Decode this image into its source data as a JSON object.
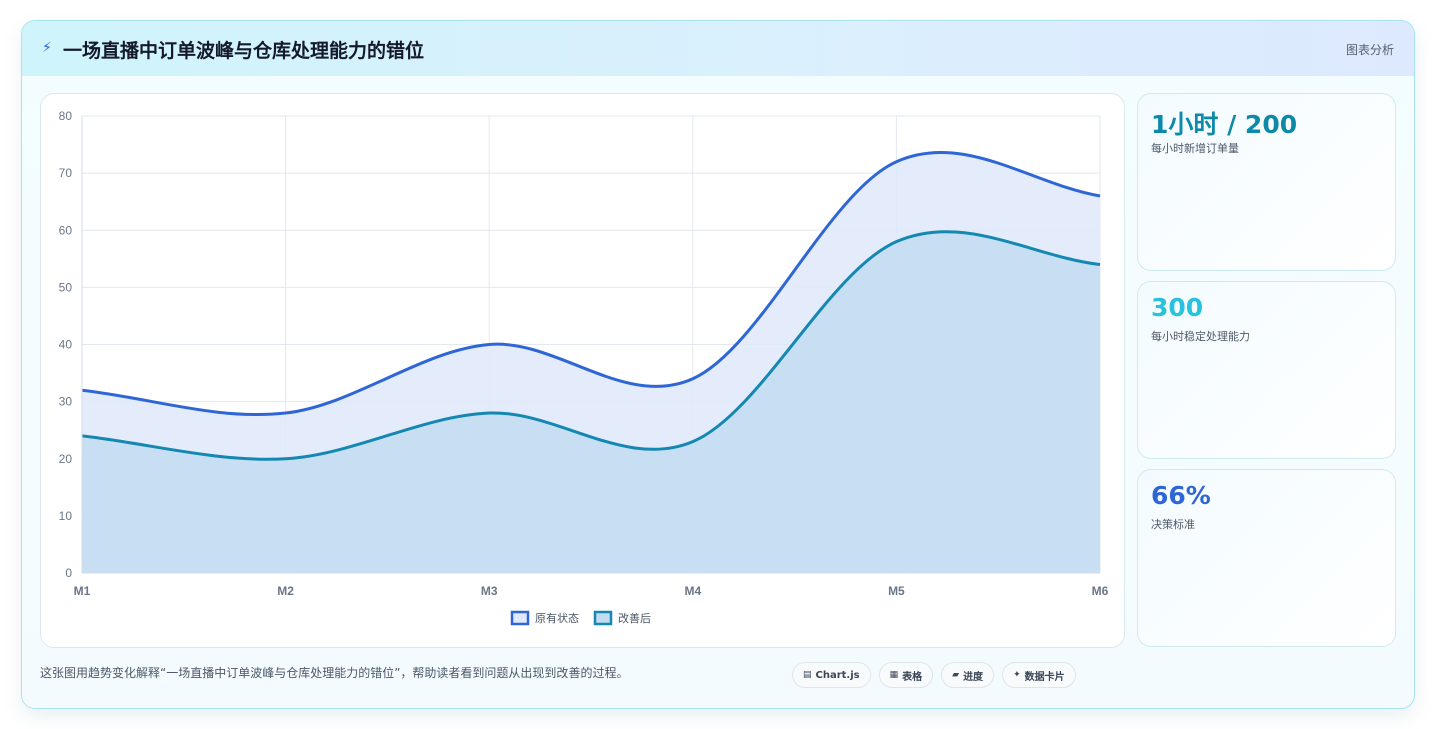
{
  "header": {
    "title": "一场直播中订单波峰与仓库处理能力的错位",
    "analysis_label": "图表分析",
    "icon": "lightning-bolt-icon"
  },
  "stats": [
    {
      "value": "1小时 / 200",
      "label": "每小时新增订单量",
      "color": "#0e8aa8"
    },
    {
      "value": "300",
      "label": "每小时稳定处理能力",
      "color": "#27c3dd"
    },
    {
      "value": "66%",
      "label": "决策标准",
      "color": "#2f66d6"
    }
  ],
  "footer": {
    "description": "这张图用趋势变化解释“一场直播中订单波峰与仓库处理能力的错位”，帮助读者看到问题从出现到改善的过程。",
    "pills": [
      {
        "icon": "chart-icon",
        "glyph": "▤",
        "label": "Chart.js"
      },
      {
        "icon": "table-icon",
        "glyph": "▦",
        "label": "表格"
      },
      {
        "icon": "progress-icon",
        "glyph": "▰",
        "label": "进度"
      },
      {
        "icon": "sparkle-icon",
        "glyph": "✦",
        "label": "数据卡片"
      }
    ]
  },
  "chart_data": {
    "type": "area",
    "categories": [
      "M1",
      "M2",
      "M3",
      "M4",
      "M5",
      "M6"
    ],
    "ylim": [
      0,
      80
    ],
    "yticks": [
      0,
      10,
      20,
      30,
      40,
      50,
      60,
      70,
      80
    ],
    "grid": true,
    "legend_position": "bottom",
    "series": [
      {
        "name": "原有状态",
        "values": [
          32,
          28,
          40,
          34,
          72,
          66
        ],
        "color": "#2f66d6",
        "fill": "#dfe9fb"
      },
      {
        "name": "改善后",
        "values": [
          24,
          20,
          28,
          23,
          58,
          54
        ],
        "color": "#1488b0",
        "fill": "#c3dcf1"
      }
    ]
  }
}
